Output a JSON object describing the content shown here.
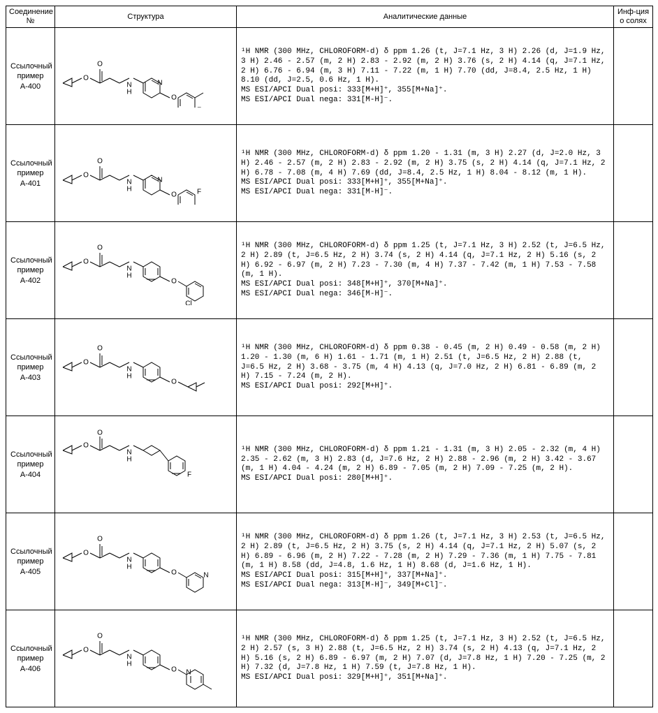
{
  "headers": {
    "id": "Соединение\n№",
    "structure": "Структура",
    "data": "Аналитические данные",
    "salt": "Инф-ция\nо солях"
  },
  "id_label_prefix": "Ссылочный\nпример",
  "rows": [
    {
      "code": "A-400",
      "data": "¹H NMR (300 MHz, CHLOROFORM-d) δ ppm 1.26 (t, J=7.1 Hz, 3 H) 2.26 (d, J=1.9 Hz, 3 H) 2.46 - 2.57 (m, 2 H) 2.83 - 2.92 (m, 2 H) 3.76 (s, 2 H) 4.14 (q, J=7.1 Hz, 2 H) 6.76 - 6.94 (m, 3 H) 7.11 - 7.22 (m, 1 H) 7.70 (dd, J=8.4, 2.5 Hz, 1 H) 8.10 (dd, J=2.5, 0.6 Hz, 1 H).\nMS ESI/APCI Dual posi: 333[M+H]⁺, 355[M+Na]⁺.\nMS ESI/APCI Dual nega: 331[M-H]⁻.",
      "salt": "",
      "struct": "A"
    },
    {
      "code": "A-401",
      "data": "¹H NMR (300 MHz, CHLOROFORM-d) δ ppm 1.20 - 1.31 (m, 3 H) 2.27 (d, J=2.0 Hz, 3 H) 2.46 - 2.57 (m, 2 H) 2.83 - 2.92 (m, 2 H) 3.75 (s, 2 H) 4.14 (q, J=7.1 Hz, 2 H) 6.78 - 7.08 (m, 4 H) 7.69 (dd, J=8.4, 2.5 Hz, 1 H) 8.04 - 8.12 (m, 1 H).\nMS ESI/APCI Dual posi: 333[M+H]⁺, 355[M+Na]⁺.\nMS ESI/APCI Dual nega: 331[M-H]⁻.",
      "salt": "",
      "struct": "B"
    },
    {
      "code": "A-402",
      "data": "¹H NMR (300 MHz, CHLOROFORM-d) δ ppm 1.25 (t, J=7.1 Hz, 3 H) 2.52 (t, J=6.5 Hz, 2 H) 2.89 (t, J=6.5 Hz, 2 H) 3.74 (s, 2 H) 4.14 (q, J=7.1 Hz, 2 H) 5.16 (s, 2 H) 6.92 - 6.97 (m, 2 H) 7.23 - 7.30 (m, 4 H) 7.37 - 7.42 (m, 1 H) 7.53 - 7.58 (m, 1 H).\nMS ESI/APCI Dual posi: 348[M+H]⁺, 370[M+Na]⁺.\nMS ESI/APCI Dual nega: 346[M-H]⁻.",
      "salt": "",
      "struct": "C"
    },
    {
      "code": "A-403",
      "data": "¹H NMR (300 MHz, CHLOROFORM-d) δ ppm 0.38 - 0.45 (m, 2 H) 0.49 - 0.58 (m, 2 H) 1.20 - 1.30 (m, 6 H) 1.61 - 1.71 (m, 1 H) 2.51 (t, J=6.5 Hz, 2 H) 2.88 (t, J=6.5 Hz, 2 H) 3.68 - 3.75 (m, 4 H) 4.13 (q, J=7.0 Hz, 2 H) 6.81 - 6.89 (m, 2 H) 7.15 - 7.24 (m, 2 H).\nMS ESI/APCI Dual posi: 292[M+H]⁺.",
      "salt": "",
      "struct": "D"
    },
    {
      "code": "A-404",
      "data": "¹H NMR (300 MHz, CHLOROFORM-d) δ ppm 1.21 - 1.31 (m, 3 H) 2.05 - 2.32 (m, 4 H) 2.35 - 2.62 (m, 3 H) 2.83 (d, J=7.6 Hz, 2 H) 2.88 - 2.96 (m, 2 H) 3.42 - 3.67 (m, 1 H) 4.04 - 4.24 (m, 2 H) 6.89 - 7.05 (m, 2 H) 7.09 - 7.25 (m, 2 H).\nMS ESI/APCI Dual posi: 280[M+H]⁺.",
      "salt": "",
      "struct": "E"
    },
    {
      "code": "A-405",
      "data": "¹H NMR (300 MHz, CHLOROFORM-d) δ ppm 1.26 (t, J=7.1 Hz, 3 H) 2.53 (t, J=6.5 Hz, 2 H) 2.89 (t, J=6.5 Hz, 2 H) 3.75 (s, 2 H) 4.14 (q, J=7.1 Hz, 2 H) 5.07 (s, 2 H) 6.89 - 6.96 (m, 2 H) 7.22 - 7.28 (m, 2 H) 7.29 - 7.36 (m, 1 H) 7.75 - 7.81 (m, 1 H) 8.58 (dd, J=4.8, 1.6 Hz, 1 H) 8.68 (d, J=1.6 Hz, 1 H).\nMS ESI/APCI Dual posi: 315[M+H]⁺, 337[M+Na]⁺.\nMS ESI/APCI Dual nega: 313[M-H]⁻, 349[M+Cl]⁻.",
      "salt": "",
      "struct": "F"
    },
    {
      "code": "A-406",
      "data": "¹H NMR (300 MHz, CHLOROFORM-d) δ ppm 1.25 (t, J=7.1 Hz, 3 H) 2.52 (t, J=6.5 Hz, 2 H) 2.57 (s, 3 H) 2.88 (t, J=6.5 Hz, 2 H) 3.74 (s, 2 H) 4.13 (q, J=7.1 Hz, 2 H) 5.16 (s, 2 H) 6.89 - 6.97 (m, 2 H) 7.07 (d, J=7.8 Hz, 1 H) 7.20 - 7.25 (m, 2 H) 7.32 (d, J=7.8 Hz, 1 H) 7.59 (t, J=7.8 Hz, 1 H).\nMS ESI/APCI Dual posi: 329[M+H]⁺, 351[M+Na]⁺.",
      "salt": "",
      "struct": "G"
    }
  ]
}
